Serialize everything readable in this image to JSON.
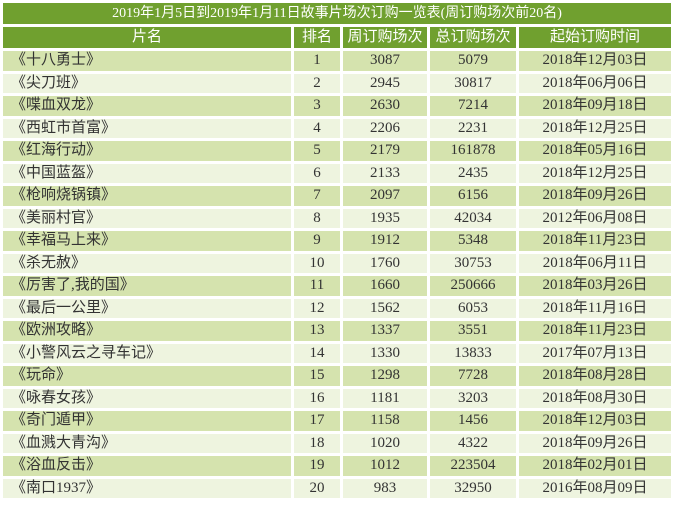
{
  "colors": {
    "header_bg": "#70A02F",
    "header_text": "#FFFFFF",
    "row_odd_bg": "#D5E3AE",
    "row_even_bg": "#EEF4DF",
    "body_text": "#333333",
    "page_bg": "#FFFFFF"
  },
  "chart_data": {
    "type": "table",
    "title": "2019年1月5日到2019年1月11日故事片场次订购一览表(周订购场次前20名)",
    "columns": [
      "片名",
      "排名",
      "周订购场次",
      "总订购场次",
      "起始订购时间"
    ],
    "rows": [
      [
        "《十八勇士》",
        "1",
        "3087",
        "5079",
        "2018年12月03日"
      ],
      [
        "《尖刀班》",
        "2",
        "2945",
        "30817",
        "2018年06月06日"
      ],
      [
        "《喋血双龙》",
        "3",
        "2630",
        "7214",
        "2018年09月18日"
      ],
      [
        "《西虹市首富》",
        "4",
        "2206",
        "2231",
        "2018年12月25日"
      ],
      [
        "《红海行动》",
        "5",
        "2179",
        "161878",
        "2018年05月16日"
      ],
      [
        "《中国蓝盔》",
        "6",
        "2133",
        "2435",
        "2018年12月25日"
      ],
      [
        "《枪响烧锅镇》",
        "7",
        "2097",
        "6156",
        "2018年09月26日"
      ],
      [
        "《美丽村官》",
        "8",
        "1935",
        "42034",
        "2012年06月08日"
      ],
      [
        "《幸福马上来》",
        "9",
        "1912",
        "5348",
        "2018年11月23日"
      ],
      [
        "《杀无赦》",
        "10",
        "1760",
        "30753",
        "2018年06月11日"
      ],
      [
        "《厉害了,我的国》",
        "11",
        "1660",
        "250666",
        "2018年03月26日"
      ],
      [
        "《最后一公里》",
        "12",
        "1562",
        "6053",
        "2018年11月16日"
      ],
      [
        "《欧洲攻略》",
        "13",
        "1337",
        "3551",
        "2018年11月23日"
      ],
      [
        "《小警风云之寻车记》",
        "14",
        "1330",
        "13833",
        "2017年07月13日"
      ],
      [
        "《玩命》",
        "15",
        "1298",
        "7728",
        "2018年08月28日"
      ],
      [
        "《咏春女孩》",
        "16",
        "1181",
        "3203",
        "2018年08月30日"
      ],
      [
        "《奇门遁甲》",
        "17",
        "1158",
        "1456",
        "2018年12月03日"
      ],
      [
        "《血溅大青沟》",
        "18",
        "1020",
        "4322",
        "2018年09月26日"
      ],
      [
        "《浴血反击》",
        "19",
        "1012",
        "223504",
        "2018年02月01日"
      ],
      [
        "《南口1937》",
        "20",
        "983",
        "32950",
        "2016年08月09日"
      ]
    ]
  }
}
